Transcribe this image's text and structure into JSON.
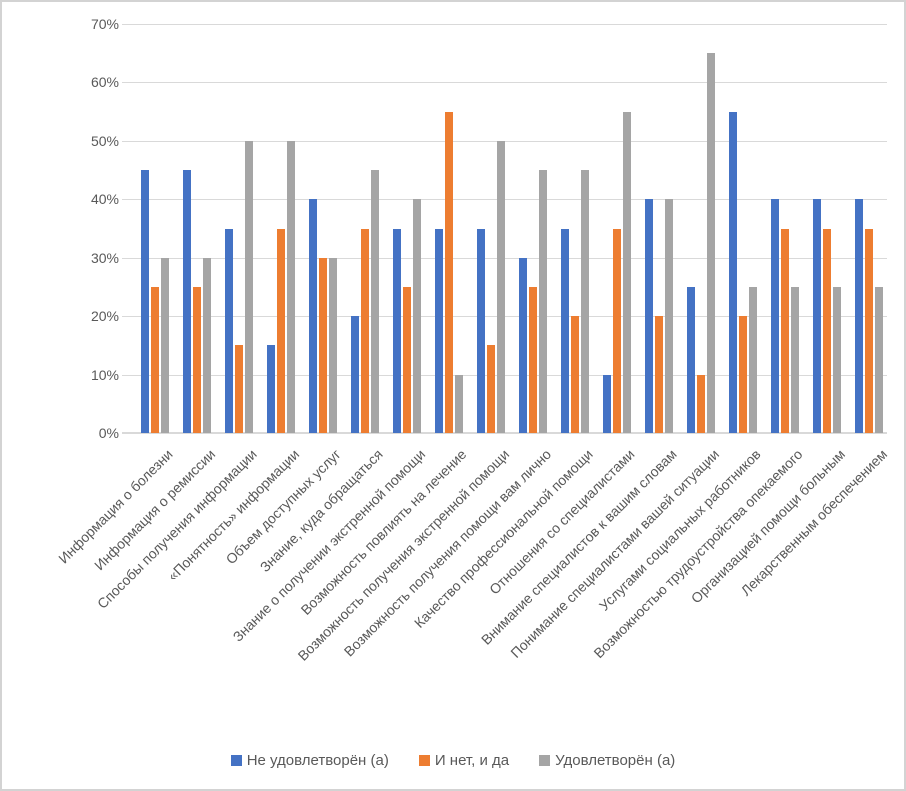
{
  "chart_data": {
    "type": "bar",
    "title": "",
    "xlabel": "",
    "ylabel": "",
    "categories": [
      "Информация о болезни",
      "Информация о ремиссии",
      "Способы получения информации",
      "«Понятность» информации",
      "Объем доступных услуг",
      "Знание, куда обращаться",
      "Знание о  получении экстренной помощи",
      "Возможность повлиять на лечение",
      "Возможность получения экстренной помощи",
      "Возможность получения помощи вам лично",
      "Качество профессиональной помощи",
      "Отношения со специалистами",
      "Внимание специалистов к вашим словам",
      "Понимание специалистами вашей ситуации",
      "Услугами социальных работников",
      "Возможностью трудоустройства опекаемого",
      "Организацией помощи больным",
      "Лекарственным обеспечением"
    ],
    "series": [
      {
        "name": "Не удовлетворён (а)",
        "color": "#4472C4",
        "values": [
          45,
          45,
          35,
          15,
          40,
          20,
          35,
          35,
          35,
          30,
          35,
          10,
          40,
          25,
          55,
          40,
          40,
          40
        ]
      },
      {
        "name": "И нет, и да",
        "color": "#ED7D31",
        "values": [
          25,
          25,
          15,
          35,
          30,
          35,
          25,
          55,
          15,
          25,
          20,
          35,
          20,
          10,
          20,
          35,
          35,
          35
        ]
      },
      {
        "name": "Удовлетворён (а)",
        "color": "#A5A5A5",
        "values": [
          30,
          30,
          50,
          50,
          30,
          45,
          40,
          10,
          50,
          45,
          45,
          55,
          40,
          65,
          25,
          25,
          25,
          25
        ]
      }
    ],
    "ylim": [
      0,
      70
    ],
    "ytick_step": 10,
    "yticklabels": [
      "0%",
      "10%",
      "20%",
      "30%",
      "40%",
      "50%",
      "60%",
      "70%"
    ],
    "grid": true,
    "legend_position": "bottom",
    "colors": {
      "gridline": "#D9D9D9",
      "axis_text": "#595959",
      "chart_border": "#D3D3D3",
      "background": "#FFFFFF"
    }
  }
}
